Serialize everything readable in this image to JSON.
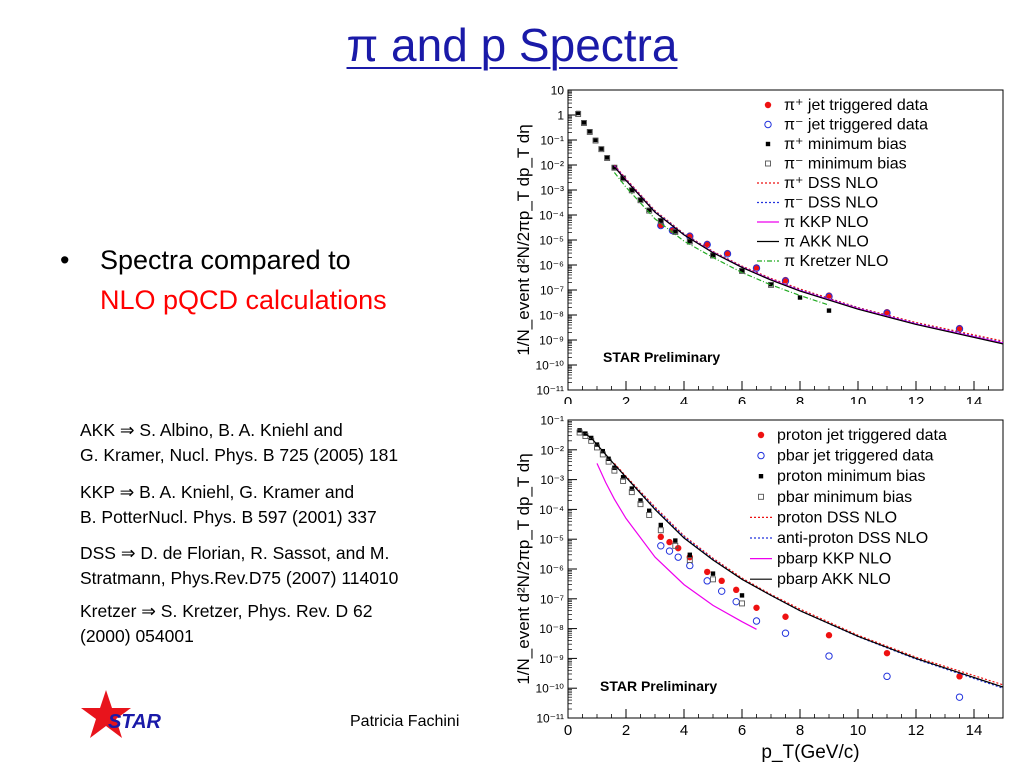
{
  "slide": {
    "title": "π and p Spectra",
    "bullet_marker": "•",
    "bullet_line1": "Spectra compared to",
    "bullet_line2": "NLO pQCD calculations",
    "refs": [
      {
        "line1": "AKK ⇒ S. Albino, B. A. Kniehl and",
        "line2": "G. Kramer, Nucl. Phys. B 725 (2005) 181"
      },
      {
        "line1": "KKP ⇒ B. A. Kniehl, G. Kramer and",
        "line2": "B. PotterNucl. Phys. B 597 (2001) 337"
      },
      {
        "line1": "DSS ⇒ D. de Florian, R. Sassot, and M.",
        "line2": "Stratmann, Phys.Rev.D75 (2007) 114010"
      },
      {
        "line1": "Kretzer ⇒ S. Kretzer, Phys. Rev. D 62",
        "line2": "(2000) 054001"
      }
    ],
    "footer": "Patricia Fachini",
    "logo_text": "STAR",
    "colors": {
      "title": "#1a1aa8",
      "highlight": "#ff0000",
      "logo_star": "#e8141c",
      "logo_text": "#1a1aa8"
    }
  },
  "chart_data": [
    {
      "type": "scatter",
      "panel": "pion",
      "annotation": "STAR Preliminary",
      "xlabel": "",
      "ylabel": "1/N_event d²N/2πp_T dp_T dη",
      "xlim": [
        0,
        15
      ],
      "ylim_log10": [
        -11,
        1
      ],
      "x_ticks": [
        0,
        2,
        4,
        6,
        8,
        10,
        12,
        14
      ],
      "y_ticks": [
        "10",
        "1",
        "10⁻¹",
        "10⁻²",
        "10⁻³",
        "10⁻⁴",
        "10⁻⁵",
        "10⁻⁶",
        "10⁻⁷",
        "10⁻⁸",
        "10⁻⁹",
        "10⁻¹⁰",
        "10⁻¹¹"
      ],
      "legend": [
        {
          "label": "π⁺ jet triggered data",
          "style": "dot-red"
        },
        {
          "label": "π⁻ jet triggered data",
          "style": "circle-blue"
        },
        {
          "label": "π⁺ minimum bias",
          "style": "square-black"
        },
        {
          "label": "π⁻ minimum bias",
          "style": "square-open"
        },
        {
          "label": "π⁺ DSS NLO",
          "style": "line-red-dotted"
        },
        {
          "label": "π⁻ DSS NLO",
          "style": "line-blue-dotted"
        },
        {
          "label": "π KKP NLO",
          "style": "line-magenta"
        },
        {
          "label": "π AKK NLO",
          "style": "line-black"
        },
        {
          "label": "π Kretzer NLO",
          "style": "line-green-dashdot"
        }
      ],
      "series": [
        {
          "name": "π⁺ jet triggered data",
          "x": [
            3.2,
            3.6,
            4.2,
            4.8,
            5.5,
            6.5,
            7.5,
            9.0,
            11.0,
            13.5
          ],
          "y": [
            4e-05,
            2.5e-05,
            1.5e-05,
            7e-06,
            3e-06,
            8e-07,
            2.5e-07,
            6e-08,
            1.3e-08,
            3e-09
          ]
        },
        {
          "name": "π⁻ jet triggered data",
          "x": [
            3.2,
            3.6,
            4.2,
            4.8,
            5.5,
            6.5,
            7.5,
            9.0,
            11.0,
            13.5
          ],
          "y": [
            3.8e-05,
            2.4e-05,
            1.4e-05,
            6.5e-06,
            2.8e-06,
            7.5e-07,
            2.3e-07,
            5.5e-08,
            1.2e-08,
            2.8e-09
          ]
        },
        {
          "name": "π⁺ minimum bias",
          "x": [
            0.35,
            0.55,
            0.75,
            0.95,
            1.15,
            1.35,
            1.6,
            1.9,
            2.2,
            2.5,
            2.8,
            3.2,
            3.7,
            4.2,
            5.0,
            6.0,
            7.0,
            8.0,
            9.0
          ],
          "y": [
            1.2,
            0.5,
            0.22,
            0.1,
            0.045,
            0.02,
            0.008,
            0.003,
            0.001,
            0.0004,
            0.00016,
            6e-05,
            2.2e-05,
            9e-06,
            2.5e-06,
            6e-07,
            1.7e-07,
            5e-08,
            1.5e-08
          ]
        },
        {
          "name": "π⁻ minimum bias",
          "x": [
            0.35,
            0.55,
            0.75,
            0.95,
            1.15,
            1.35,
            1.6,
            1.9,
            2.2,
            2.5,
            2.8,
            3.2,
            3.7,
            4.2,
            5.0,
            6.0,
            7.0
          ],
          "y": [
            1.1,
            0.48,
            0.21,
            0.095,
            0.043,
            0.019,
            0.0078,
            0.0029,
            0.00097,
            0.00039,
            0.00015,
            5.8e-05,
            2.1e-05,
            8.6e-06,
            2.4e-06,
            5.8e-07,
            1.6e-07
          ]
        },
        {
          "name": "π⁺ DSS NLO",
          "x": [
            1.6,
            2,
            3,
            4,
            5,
            6,
            7,
            8,
            10,
            12,
            15
          ],
          "y": [
            0.01,
            0.0028,
            0.00015,
            1.8e-05,
            3.5e-06,
            9e-07,
            2.9e-07,
            1.1e-07,
            2e-08,
            5e-09,
            9e-10
          ],
          "curve": true
        },
        {
          "name": "π⁻ DSS NLO",
          "x": [
            1.6,
            2,
            3,
            4,
            5,
            6,
            7,
            8,
            10,
            12,
            15
          ],
          "y": [
            0.0095,
            0.0026,
            0.00014,
            1.7e-05,
            3.3e-06,
            8.5e-07,
            2.7e-07,
            1e-07,
            1.9e-08,
            4.6e-09,
            8e-10
          ],
          "curve": true
        },
        {
          "name": "π KKP NLO",
          "x": [
            1.6,
            2,
            3,
            4,
            5,
            6,
            7,
            8,
            10,
            12,
            15
          ],
          "y": [
            0.009,
            0.0025,
            0.00013,
            1.6e-05,
            3.2e-06,
            8.2e-07,
            2.6e-07,
            9.5e-08,
            1.8e-08,
            4.4e-09,
            7.5e-10
          ],
          "curve": true
        },
        {
          "name": "π AKK NLO",
          "x": [
            1.6,
            2,
            3,
            4,
            5,
            6,
            7,
            8,
            10,
            12,
            15
          ],
          "y": [
            0.0085,
            0.0024,
            0.00013,
            1.6e-05,
            3.1e-06,
            8e-07,
            2.5e-07,
            9e-08,
            1.7e-08,
            4.2e-09,
            7e-10
          ],
          "curve": true
        },
        {
          "name": "π Kretzer NLO",
          "x": [
            1.6,
            2,
            3,
            4,
            5,
            6,
            7,
            8,
            9
          ],
          "y": [
            0.005,
            0.0013,
            7e-05,
            9e-06,
            2e-06,
            5e-07,
            1.6e-07,
            6e-08,
            2.5e-08
          ],
          "curve": true
        }
      ]
    },
    {
      "type": "scatter",
      "panel": "proton",
      "annotation": "STAR Preliminary",
      "xlabel": "p_T(GeV/c)",
      "ylabel": "1/N_event d²N/2πp_T dp_T dη",
      "xlim": [
        0,
        15
      ],
      "ylim_log10": [
        -11,
        -1
      ],
      "x_ticks": [
        0,
        2,
        4,
        6,
        8,
        10,
        12,
        14
      ],
      "y_ticks": [
        "10⁻¹",
        "10⁻²",
        "10⁻³",
        "10⁻⁴",
        "10⁻⁵",
        "10⁻⁶",
        "10⁻⁷",
        "10⁻⁸",
        "10⁻⁹",
        "10⁻¹⁰",
        "10⁻¹¹"
      ],
      "legend": [
        {
          "label": "proton jet triggered data",
          "style": "dot-red"
        },
        {
          "label": "pbar jet triggered data",
          "style": "circle-blue"
        },
        {
          "label": "proton minimum bias",
          "style": "square-black"
        },
        {
          "label": "pbar minimum bias",
          "style": "square-open"
        },
        {
          "label": "proton DSS NLO",
          "style": "line-red-dotted"
        },
        {
          "label": "anti-proton DSS NLO",
          "style": "line-blue-dotted"
        },
        {
          "label": "pbarp KKP NLO",
          "style": "line-magenta"
        },
        {
          "label": "pbarp AKK NLO",
          "style": "line-black"
        }
      ],
      "series": [
        {
          "name": "proton jet triggered data",
          "x": [
            3.2,
            3.5,
            3.8,
            4.2,
            4.8,
            5.3,
            5.8,
            6.5,
            7.5,
            9.0,
            11.0,
            13.5
          ],
          "y": [
            1.2e-05,
            8e-06,
            5e-06,
            2.5e-06,
            8e-07,
            4e-07,
            2e-07,
            5e-08,
            2.5e-08,
            6e-09,
            1.5e-09,
            2.5e-10
          ]
        },
        {
          "name": "pbar jet triggered data",
          "x": [
            3.2,
            3.5,
            3.8,
            4.2,
            4.8,
            5.3,
            5.8,
            6.5,
            7.5,
            9.0,
            11.0,
            13.5
          ],
          "y": [
            6e-06,
            4e-06,
            2.5e-06,
            1.3e-06,
            4e-07,
            1.8e-07,
            8e-08,
            1.8e-08,
            7e-09,
            1.2e-09,
            2.5e-10,
            5e-11
          ]
        },
        {
          "name": "proton minimum bias",
          "x": [
            0.4,
            0.6,
            0.8,
            1.0,
            1.2,
            1.4,
            1.6,
            1.9,
            2.2,
            2.5,
            2.8,
            3.2,
            3.7,
            4.2,
            5.0,
            6.0
          ],
          "y": [
            0.045,
            0.035,
            0.025,
            0.015,
            0.009,
            0.005,
            0.0025,
            0.0012,
            0.0005,
            0.0002,
            9e-05,
            3e-05,
            9e-06,
            3e-06,
            7e-07,
            1.3e-07
          ]
        },
        {
          "name": "pbar minimum bias",
          "x": [
            0.4,
            0.6,
            0.8,
            1.0,
            1.2,
            1.4,
            1.6,
            1.9,
            2.2,
            2.5,
            2.8,
            3.2,
            3.7,
            4.2,
            5.0,
            6.0
          ],
          "y": [
            0.038,
            0.029,
            0.02,
            0.012,
            0.007,
            0.004,
            0.002,
            0.0009,
            0.00038,
            0.00015,
            6.5e-05,
            2e-05,
            6e-06,
            2e-06,
            4.5e-07,
            7e-08
          ]
        },
        {
          "name": "proton DSS NLO",
          "x": [
            1.6,
            2,
            3,
            4,
            5,
            6,
            7,
            8,
            10,
            12,
            15
          ],
          "y": [
            0.0035,
            0.0013,
            0.00012,
            1.3e-05,
            2.3e-06,
            5e-07,
            1.4e-07,
            4.5e-08,
            6e-09,
            1.1e-09,
            1.3e-10
          ],
          "curve": true
        },
        {
          "name": "anti-proton DSS NLO",
          "x": [
            1.6,
            2,
            3,
            4,
            5,
            6,
            7,
            8,
            10,
            12,
            15
          ],
          "y": [
            0.0032,
            0.0012,
            0.00011,
            1.2e-05,
            2.1e-06,
            4.5e-07,
            1.3e-07,
            4e-08,
            5.4e-09,
            9.5e-10,
            1e-10
          ],
          "curve": true
        },
        {
          "name": "pbarp KKP NLO",
          "x": [
            1.0,
            1.3,
            1.6,
            2,
            3,
            4,
            5,
            6,
            6.5
          ],
          "y": [
            0.0035,
            0.0008,
            0.00022,
            5e-05,
            2.5e-06,
            3e-07,
            6e-08,
            1.7e-08,
            9.5e-09
          ],
          "curve": true
        },
        {
          "name": "pbarp AKK NLO",
          "x": [
            0.5,
            0.8,
            1.2,
            1.6,
            2,
            3,
            4,
            5,
            6,
            7,
            8,
            10,
            12,
            15
          ],
          "y": [
            0.04,
            0.025,
            0.009,
            0.0032,
            0.0012,
            0.0001,
            1.1e-05,
            2e-06,
            4.5e-07,
            1.3e-07,
            4e-08,
            5.5e-09,
            1e-09,
            1.1e-10
          ],
          "curve": true
        }
      ]
    }
  ]
}
